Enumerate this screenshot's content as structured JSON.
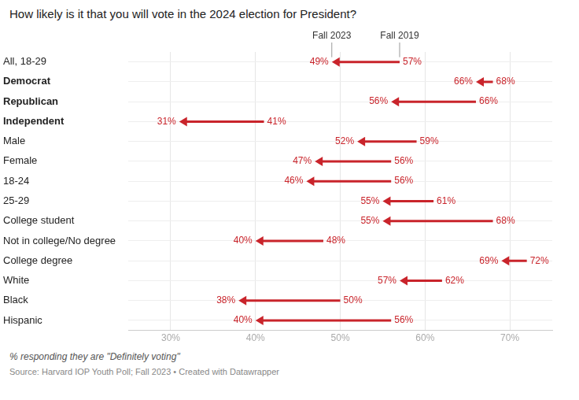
{
  "chart_data": {
    "type": "arrow",
    "title": "How likely is it that you will vote in the 2024 election for President?",
    "annotations": [
      "% responding they are \"Definitely voting\"",
      "Source: Harvard IOP Youth Poll; Fall 2023 • Created with Datawrapper"
    ],
    "orientation": "horizontal",
    "categories": [
      "All, 18-29",
      "Democrat",
      "Republican",
      "Independent",
      "Male",
      "Female",
      "18-24",
      "25-29",
      "College student",
      "Not in college/No degree",
      "College degree",
      "White",
      "Black",
      "Hispanic"
    ],
    "series": [
      {
        "name": "Fall 2019",
        "color": "#c9242b",
        "values": [
          57,
          68,
          66,
          41,
          59,
          56,
          56,
          61,
          68,
          48,
          72,
          62,
          50,
          56
        ],
        "value_labels": [
          "57%",
          "68%",
          "66%",
          "41%",
          "59%",
          "56%",
          "56%",
          "61%",
          "68%",
          "48%",
          "72%",
          "62%",
          "50%",
          "56%"
        ]
      },
      {
        "name": "Fall 2023",
        "color": "#c9242b",
        "values": [
          49,
          66,
          56,
          31,
          52,
          47,
          46,
          55,
          55,
          40,
          69,
          57,
          38,
          40
        ],
        "value_labels": [
          "49%",
          "66%",
          "56%",
          "31%",
          "52%",
          "47%",
          "46%",
          "55%",
          "55%",
          "40%",
          "69%",
          "57%",
          "38%",
          "40%"
        ]
      }
    ],
    "xlim": [
      25,
      75
    ],
    "xticks": [
      {
        "value": 30,
        "label": "30%"
      },
      {
        "value": 40,
        "label": "40%"
      },
      {
        "value": 50,
        "label": "50%"
      },
      {
        "value": 60,
        "label": "60%"
      },
      {
        "value": 70,
        "label": "70%"
      }
    ],
    "grid": true,
    "data_labels": true
  }
}
